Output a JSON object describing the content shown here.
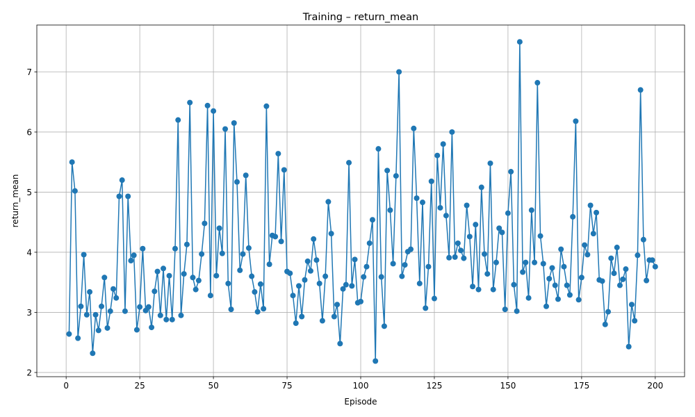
{
  "chart_data": {
    "type": "line",
    "title": "Training – return_mean",
    "xlabel": "Episode",
    "ylabel": "return_mean",
    "xlim": [
      -9.95,
      209.95
    ],
    "ylim": [
      1.93,
      7.78
    ],
    "xticks": [
      0,
      25,
      50,
      75,
      100,
      125,
      150,
      175,
      200
    ],
    "yticks": [
      2,
      3,
      4,
      5,
      6,
      7
    ],
    "grid": true,
    "legend": "none",
    "line_color": "#1f77b4",
    "marker": "circle",
    "series": [
      {
        "x": [
          1,
          2,
          3,
          4,
          5,
          6,
          7,
          8,
          9,
          10,
          11,
          12,
          13,
          14,
          15,
          16,
          17,
          18,
          19,
          20,
          21,
          22,
          23,
          24,
          25,
          26,
          27,
          28,
          29,
          30,
          31,
          32,
          33,
          34,
          35,
          36,
          37,
          38,
          39,
          40,
          41,
          42,
          43,
          44,
          45,
          46,
          47,
          48,
          49,
          50,
          51,
          52,
          53,
          54,
          55,
          56,
          57,
          58,
          59,
          60,
          61,
          62,
          63,
          64,
          65,
          66,
          67,
          68,
          69,
          70,
          71,
          72,
          73,
          74,
          75,
          76,
          77,
          78,
          79,
          80,
          81,
          82,
          83,
          84,
          85,
          86,
          87,
          88,
          89,
          90,
          91,
          92,
          93,
          94,
          95,
          96,
          97,
          98,
          99,
          100,
          101,
          102,
          103,
          104,
          105,
          106,
          107,
          108,
          109,
          110,
          111,
          112,
          113,
          114,
          115,
          116,
          117,
          118,
          119,
          120,
          121,
          122,
          123,
          124,
          125,
          126,
          127,
          128,
          129,
          130,
          131,
          132,
          133,
          134,
          135,
          136,
          137,
          138,
          139,
          140,
          141,
          142,
          143,
          144,
          145,
          146,
          147,
          148,
          149,
          150,
          151,
          152,
          153,
          154,
          155,
          156,
          157,
          158,
          159,
          160,
          161,
          162,
          163,
          164,
          165,
          166,
          167,
          168,
          169,
          170,
          171,
          172,
          173,
          174,
          175,
          176,
          177,
          178,
          179,
          180,
          181,
          182,
          183,
          184,
          185,
          186,
          187,
          188,
          189,
          190,
          191,
          192,
          193,
          194,
          195,
          196,
          197,
          198,
          199,
          200
        ],
        "values": [
          2.64,
          5.5,
          5.02,
          2.57,
          3.1,
          3.96,
          2.96,
          3.34,
          2.32,
          2.96,
          2.7,
          3.1,
          3.58,
          2.74,
          3.02,
          3.39,
          3.24,
          4.93,
          5.2,
          3.02,
          4.93,
          3.86,
          3.95,
          2.71,
          3.09,
          4.06,
          3.03,
          3.09,
          2.75,
          3.35,
          3.68,
          2.95,
          3.73,
          2.88,
          3.61,
          2.88,
          4.06,
          6.2,
          2.95,
          3.64,
          4.13,
          6.49,
          3.58,
          3.38,
          3.53,
          3.97,
          4.48,
          6.44,
          3.28,
          6.35,
          3.61,
          4.4,
          3.98,
          6.05,
          3.48,
          3.05,
          6.15,
          5.17,
          3.7,
          3.97,
          5.28,
          4.07,
          3.6,
          3.34,
          3.01,
          3.47,
          3.06,
          6.43,
          3.8,
          4.28,
          4.26,
          5.64,
          4.18,
          5.37,
          3.68,
          3.65,
          3.28,
          2.82,
          3.44,
          2.93,
          3.54,
          3.85,
          3.69,
          4.22,
          3.87,
          3.48,
          2.86,
          3.6,
          4.84,
          4.31,
          2.93,
          3.13,
          2.48,
          3.39,
          3.46,
          5.49,
          3.44,
          3.88,
          3.16,
          3.18,
          3.59,
          3.76,
          4.15,
          4.54,
          2.19,
          5.72,
          3.59,
          2.77,
          5.36,
          4.7,
          3.81,
          5.27,
          7.0,
          3.6,
          3.79,
          4.01,
          4.05,
          6.06,
          4.9,
          3.48,
          4.83,
          3.07,
          3.76,
          5.18,
          3.23,
          5.61,
          4.74,
          5.8,
          4.61,
          3.91,
          6.0,
          3.92,
          4.15,
          4.03,
          3.9,
          4.78,
          4.26,
          3.43,
          4.46,
          3.38,
          5.08,
          3.97,
          3.64,
          5.48,
          3.38,
          3.83,
          4.4,
          4.33,
          3.05,
          4.65,
          5.34,
          3.46,
          3.02,
          7.5,
          3.67,
          3.83,
          3.24,
          4.7,
          3.83,
          6.82,
          4.27,
          3.81,
          3.1,
          3.56,
          3.74,
          3.45,
          3.22,
          4.05,
          3.76,
          3.45,
          3.29,
          4.59,
          6.18,
          3.21,
          3.58,
          4.12,
          3.96,
          4.78,
          4.31,
          4.66,
          3.54,
          3.52,
          2.8,
          3.01,
          3.9,
          3.65,
          4.08,
          3.45,
          3.55,
          3.72,
          2.43,
          3.13,
          2.86,
          3.95,
          6.7,
          4.21,
          3.53,
          3.87,
          3.87,
          3.76
        ]
      }
    ]
  }
}
